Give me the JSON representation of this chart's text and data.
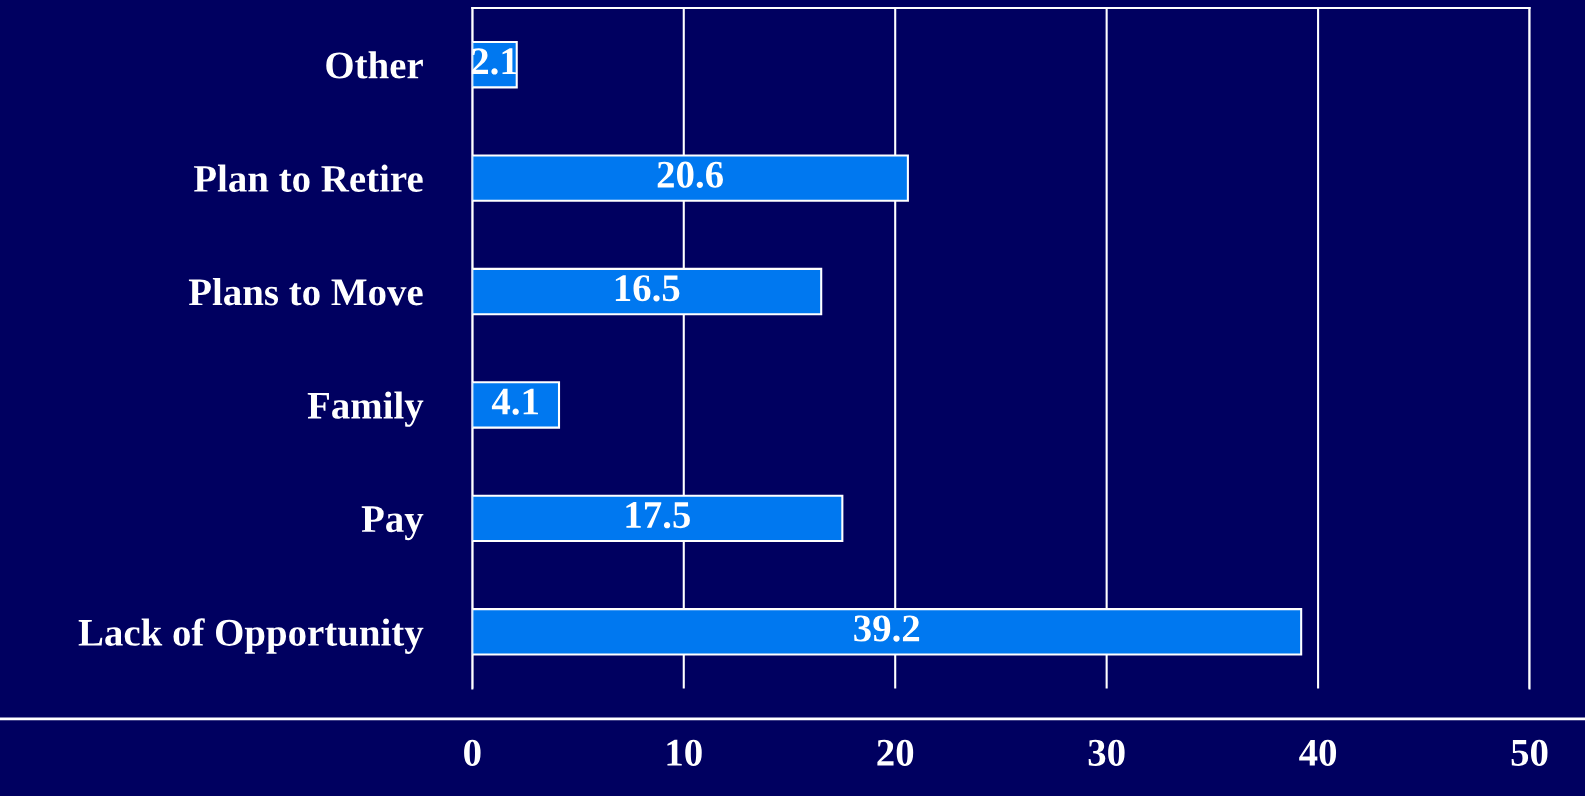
{
  "chart_data": {
    "type": "bar",
    "orientation": "horizontal",
    "categories": [
      "Other",
      "Plan to Retire",
      "Plans to Move",
      "Family",
      "Pay",
      "Lack of Opportunity"
    ],
    "values": [
      2.1,
      20.6,
      16.5,
      4.1,
      17.5,
      39.2
    ],
    "color": "#0078f0",
    "data_labels": true,
    "xlim": [
      0,
      50
    ],
    "xticks": [
      0,
      10,
      20,
      30,
      40,
      50
    ],
    "grid": "x",
    "legend": false
  }
}
